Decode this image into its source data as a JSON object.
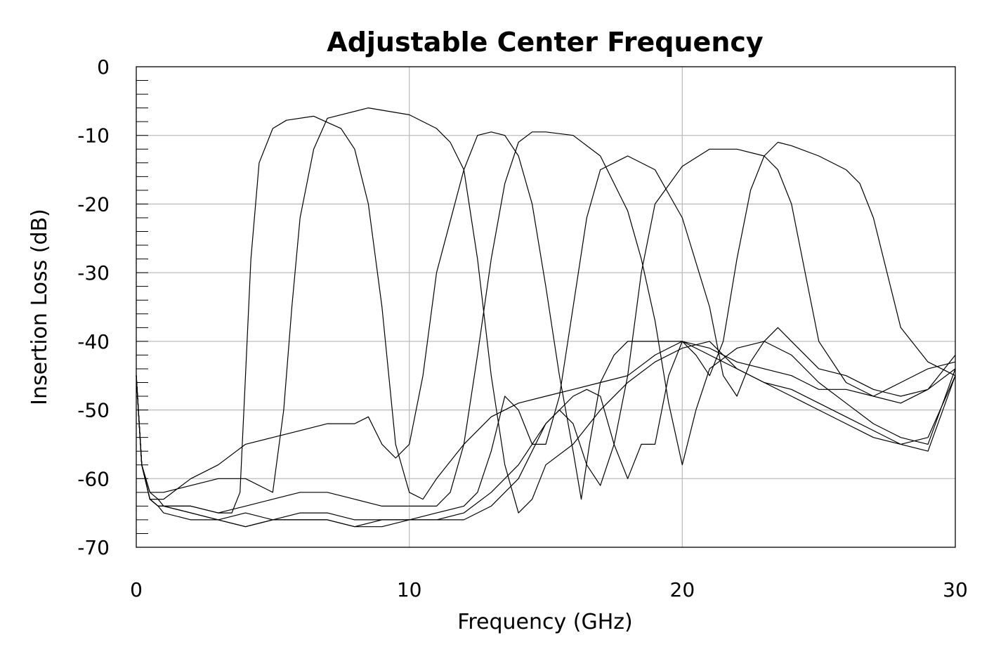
{
  "chart_data": {
    "type": "line",
    "title": "Adjustable Center Frequency",
    "xlabel": "Frequency (GHz)",
    "ylabel": "Insertion Loss (dB)",
    "xlim": [
      0,
      30
    ],
    "ylim": [
      -70,
      0
    ],
    "x_ticks": [
      0,
      10,
      20,
      30
    ],
    "y_ticks": [
      0,
      -10,
      -20,
      -30,
      -40,
      -50,
      -60,
      -70
    ],
    "x_tick_labels": [
      "0",
      "10",
      "20",
      "30"
    ],
    "y_tick_labels": [
      "0",
      "-10",
      "-20",
      "-30",
      "-40",
      "-50",
      "-60",
      "-70"
    ],
    "grid": true,
    "series": [
      {
        "x": [
          0,
          0.2,
          0.5,
          0.8,
          1,
          2,
          3,
          3.5,
          3.8,
          4.0,
          4.2,
          4.5,
          5,
          5.5,
          6.5,
          7.5,
          8.0,
          8.5,
          9,
          9.5,
          10,
          10.5,
          11,
          12,
          13,
          14,
          15,
          16,
          17,
          18,
          19,
          20,
          21,
          22,
          23,
          24,
          25,
          26,
          27,
          28,
          29,
          30
        ],
        "y": [
          -45,
          -58,
          -63,
          -64,
          -64,
          -64,
          -65,
          -65,
          -62,
          -45,
          -28,
          -14,
          -9,
          -7.8,
          -7.2,
          -9,
          -12,
          -20,
          -35,
          -55,
          -62,
          -63,
          -60,
          -55,
          -51,
          -49,
          -48,
          -47,
          -46,
          -45,
          -42,
          -40,
          -42,
          -44,
          -46,
          -48,
          -50,
          -52,
          -54,
          -55,
          -54,
          -45
        ]
      },
      {
        "x": [
          0,
          0.2,
          0.5,
          0.8,
          1,
          2,
          3,
          4,
          5,
          5.4,
          5.7,
          6,
          6.5,
          7,
          8.5,
          10,
          11,
          11.5,
          12,
          12.5,
          13,
          13.5,
          14,
          14.5,
          15,
          16,
          17,
          18,
          19,
          20,
          21,
          22,
          23,
          24,
          25,
          26,
          27,
          28,
          29,
          30
        ],
        "y": [
          -45,
          -58,
          -62,
          -62,
          -62,
          -61,
          -60,
          -60,
          -62,
          -50,
          -35,
          -22,
          -12,
          -7.5,
          -6,
          -7,
          -9,
          -11,
          -15,
          -28,
          -45,
          -58,
          -65,
          -63,
          -58,
          -55,
          -50,
          -46,
          -43,
          -41,
          -40,
          -44,
          -46,
          -47,
          -49,
          -51,
          -53,
          -55,
          -56,
          -45
        ]
      },
      {
        "x": [
          0,
          0.2,
          0.5,
          0.8,
          1,
          2,
          3,
          4,
          5,
          6,
          7,
          7.5,
          8,
          8.5,
          9,
          9.5,
          10,
          10.5,
          11,
          12,
          12.5,
          13,
          13.5,
          14,
          14.5,
          15,
          15.5,
          16,
          16.3,
          16.6,
          17,
          17.5,
          18,
          19,
          20,
          21,
          22,
          23,
          24,
          25,
          26,
          27,
          28,
          29,
          30
        ],
        "y": [
          -45,
          -58,
          -62,
          -63,
          -63,
          -60,
          -58,
          -55,
          -54,
          -53,
          -52,
          -52,
          -52,
          -51,
          -55,
          -57,
          -55,
          -45,
          -30,
          -15,
          -10,
          -9.5,
          -10,
          -13,
          -20,
          -32,
          -45,
          -56,
          -63,
          -55,
          -46,
          -42,
          -40,
          -40,
          -40,
          -41,
          -43,
          -44,
          -45,
          -47,
          -47,
          -48,
          -46,
          -44,
          -43
        ]
      },
      {
        "x": [
          0,
          0.2,
          0.5,
          0.8,
          1,
          2,
          3,
          4,
          5,
          6,
          7,
          8,
          9,
          10,
          11,
          11.5,
          12,
          12.5,
          13,
          13.5,
          14,
          14.5,
          15,
          16,
          17,
          17.5,
          18,
          18.5,
          19,
          19.5,
          20,
          20.5,
          21,
          22,
          23,
          24,
          25,
          26,
          27,
          28,
          29,
          30
        ],
        "y": [
          -45,
          -58,
          -63,
          -64,
          -64,
          -64,
          -65,
          -64,
          -63,
          -62,
          -62,
          -63,
          -64,
          -64,
          -64,
          -62,
          -55,
          -42,
          -28,
          -17,
          -11,
          -9.5,
          -9.5,
          -10,
          -13,
          -17,
          -21,
          -28,
          -37,
          -49,
          -58,
          -50,
          -44,
          -41,
          -40,
          -42,
          -46,
          -49,
          -52,
          -54,
          -55,
          -44
        ]
      },
      {
        "x": [
          0,
          0.2,
          0.5,
          0.8,
          1,
          2,
          3,
          4,
          5,
          6,
          7,
          8,
          9,
          10,
          11,
          12,
          12.5,
          13,
          13.5,
          14,
          14.5,
          15,
          15.5,
          16,
          16.5,
          17,
          18,
          19,
          20,
          21,
          21.5,
          22,
          22.5,
          23,
          23.5,
          24,
          25,
          26,
          27,
          28,
          29,
          30
        ],
        "y": [
          -45,
          -58,
          -63,
          -63,
          -64,
          -65,
          -66,
          -65,
          -66,
          -65,
          -65,
          -66,
          -66,
          -66,
          -65,
          -64,
          -62,
          -56,
          -48,
          -50,
          -55,
          -55,
          -48,
          -35,
          -22,
          -15,
          -13,
          -15,
          -22,
          -35,
          -45,
          -48,
          -43,
          -40,
          -38,
          -40,
          -44,
          -45,
          -47,
          -48,
          -47,
          -42
        ]
      },
      {
        "x": [
          0,
          0.2,
          0.5,
          0.8,
          1,
          2,
          3,
          4,
          5,
          6,
          7,
          8,
          9,
          10,
          11,
          12,
          13,
          14,
          15,
          15.5,
          16,
          16.5,
          17,
          17.5,
          18,
          18.5,
          19,
          20,
          21,
          22,
          23,
          23.5,
          24,
          24.5,
          25,
          26,
          27,
          28,
          29,
          30
        ],
        "y": [
          -45,
          -58,
          -63,
          -64,
          -64,
          -65,
          -66,
          -67,
          -66,
          -66,
          -66,
          -67,
          -66,
          -66,
          -66,
          -65,
          -62,
          -58,
          -52,
          -50,
          -52,
          -58,
          -61,
          -55,
          -45,
          -30,
          -20,
          -14.5,
          -12,
          -12,
          -13,
          -15,
          -20,
          -30,
          -40,
          -46,
          -48,
          -49,
          -47,
          -44
        ]
      },
      {
        "x": [
          0,
          0.2,
          0.5,
          0.8,
          1,
          2,
          3,
          4,
          5,
          6,
          7,
          8,
          9,
          10,
          11,
          12,
          13,
          14,
          15,
          16,
          16.5,
          17,
          17.5,
          18,
          18.5,
          19,
          19.5,
          20,
          20.5,
          21,
          21.5,
          22,
          22.5,
          23,
          23.5,
          24,
          25,
          26,
          26.5,
          27,
          27.5,
          28,
          29,
          30
        ],
        "y": [
          -45,
          -58,
          -63,
          -64,
          -65,
          -66,
          -66,
          -67,
          -66,
          -66,
          -66,
          -67,
          -67,
          -66,
          -66,
          -66,
          -64,
          -60,
          -52,
          -48,
          -47,
          -48,
          -55,
          -60,
          -55,
          -55,
          -45,
          -40,
          -42,
          -45,
          -40,
          -28,
          -18,
          -13,
          -11,
          -11.5,
          -13,
          -15,
          -17,
          -22,
          -30,
          -38,
          -43,
          -45
        ]
      }
    ]
  }
}
